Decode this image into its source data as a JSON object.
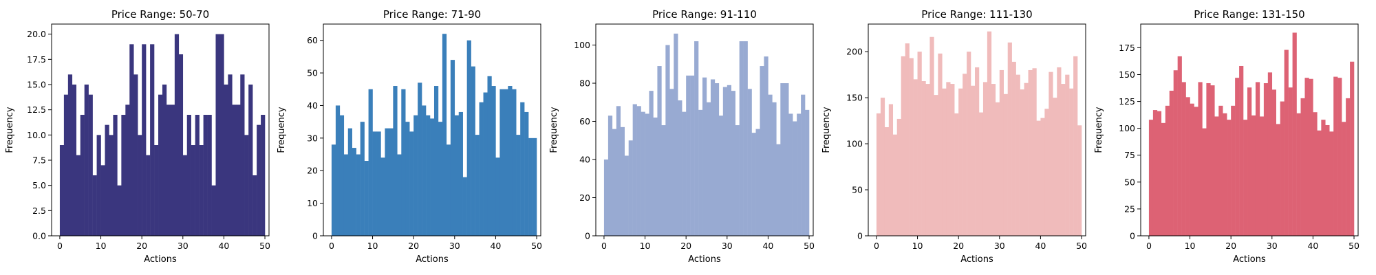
{
  "chart_data": [
    {
      "type": "bar",
      "title": "Price Range: 50-70",
      "xlabel": "Actions",
      "ylabel": "Frequency",
      "color": "#3a367e",
      "xlim": [
        -2,
        51
      ],
      "ylim": [
        0,
        21
      ],
      "xticks": [
        0,
        10,
        20,
        30,
        40,
        50
      ],
      "yticks": [
        0.0,
        2.5,
        5.0,
        7.5,
        10.0,
        12.5,
        15.0,
        17.5,
        20.0
      ],
      "ytick_labels": [
        "0.0",
        "2.5",
        "5.0",
        "7.5",
        "10.0",
        "12.5",
        "15.0",
        "17.5",
        "20.0"
      ],
      "x": [
        0,
        1,
        2,
        3,
        4,
        5,
        6,
        7,
        8,
        9,
        10,
        11,
        12,
        13,
        14,
        15,
        16,
        17,
        18,
        19,
        20,
        21,
        22,
        23,
        24,
        25,
        26,
        27,
        28,
        29,
        30,
        31,
        32,
        33,
        34,
        35,
        36,
        37,
        38,
        39,
        40,
        41,
        42,
        43,
        44,
        45,
        46,
        47,
        48,
        49
      ],
      "values": [
        9,
        14,
        16,
        15,
        8,
        12,
        15,
        14,
        6,
        10,
        7,
        11,
        10,
        12,
        5,
        12,
        13,
        19,
        16,
        10,
        19,
        8,
        19,
        9,
        14,
        15,
        13,
        13,
        20,
        18,
        8,
        12,
        9,
        12,
        9,
        12,
        12,
        5,
        20,
        20,
        15,
        16,
        13,
        13,
        16,
        10,
        15,
        6,
        11,
        12
      ]
    },
    {
      "type": "bar",
      "title": "Price Range: 71-90",
      "xlabel": "Actions",
      "ylabel": "Frequency",
      "color": "#3a7fba",
      "xlim": [
        -2,
        51
      ],
      "ylim": [
        0,
        65
      ],
      "xticks": [
        0,
        10,
        20,
        30,
        40,
        50
      ],
      "yticks": [
        0,
        10,
        20,
        30,
        40,
        50,
        60
      ],
      "ytick_labels": [
        "0",
        "10",
        "20",
        "30",
        "40",
        "50",
        "60"
      ],
      "x": [
        0,
        1,
        2,
        3,
        4,
        5,
        6,
        7,
        8,
        9,
        10,
        11,
        12,
        13,
        14,
        15,
        16,
        17,
        18,
        19,
        20,
        21,
        22,
        23,
        24,
        25,
        26,
        27,
        28,
        29,
        30,
        31,
        32,
        33,
        34,
        35,
        36,
        37,
        38,
        39,
        40,
        41,
        42,
        43,
        44,
        45,
        46,
        47,
        48,
        49
      ],
      "values": [
        28,
        40,
        37,
        25,
        33,
        27,
        25,
        35,
        23,
        45,
        32,
        32,
        24,
        33,
        33,
        46,
        25,
        45,
        35,
        32,
        37,
        47,
        40,
        37,
        36,
        46,
        35,
        62,
        28,
        54,
        37,
        38,
        18,
        60,
        52,
        31,
        41,
        44,
        49,
        46,
        24,
        45,
        45,
        46,
        45,
        31,
        41,
        38,
        30,
        30
      ]
    },
    {
      "type": "bar",
      "title": "Price Range: 91-110",
      "xlabel": "Actions",
      "ylabel": "Frequency",
      "color": "#98aad2",
      "xlim": [
        -2,
        51
      ],
      "ylim": [
        0,
        111
      ],
      "xticks": [
        0,
        10,
        20,
        30,
        40,
        50
      ],
      "yticks": [
        0,
        20,
        40,
        60,
        80,
        100
      ],
      "ytick_labels": [
        "0",
        "20",
        "40",
        "60",
        "80",
        "100"
      ],
      "x": [
        0,
        1,
        2,
        3,
        4,
        5,
        6,
        7,
        8,
        9,
        10,
        11,
        12,
        13,
        14,
        15,
        16,
        17,
        18,
        19,
        20,
        21,
        22,
        23,
        24,
        25,
        26,
        27,
        28,
        29,
        30,
        31,
        32,
        33,
        34,
        35,
        36,
        37,
        38,
        39,
        40,
        41,
        42,
        43,
        44,
        45,
        46,
        47,
        48,
        49
      ],
      "values": [
        40,
        63,
        56,
        68,
        57,
        42,
        50,
        69,
        68,
        65,
        64,
        76,
        62,
        89,
        58,
        100,
        77,
        106,
        71,
        65,
        84,
        84,
        102,
        66,
        83,
        70,
        82,
        80,
        63,
        78,
        79,
        76,
        58,
        102,
        102,
        77,
        54,
        56,
        89,
        94,
        74,
        70,
        48,
        80,
        80,
        64,
        60,
        64,
        74,
        66
      ]
    },
    {
      "type": "bar",
      "title": "Price Range: 111-130",
      "xlabel": "Actions",
      "ylabel": "Frequency",
      "color": "#f0bbbb",
      "xlim": [
        -2,
        51
      ],
      "ylim": [
        0,
        230
      ],
      "xticks": [
        0,
        10,
        20,
        30,
        40,
        50
      ],
      "yticks": [
        0,
        50,
        100,
        150,
        200
      ],
      "ytick_labels": [
        "0",
        "50",
        "100",
        "150",
        "200"
      ],
      "x": [
        0,
        1,
        2,
        3,
        4,
        5,
        6,
        7,
        8,
        9,
        10,
        11,
        12,
        13,
        14,
        15,
        16,
        17,
        18,
        19,
        20,
        21,
        22,
        23,
        24,
        25,
        26,
        27,
        28,
        29,
        30,
        31,
        32,
        33,
        34,
        35,
        36,
        37,
        38,
        39,
        40,
        41,
        42,
        43,
        44,
        45,
        46,
        47,
        48,
        49
      ],
      "values": [
        133,
        150,
        118,
        143,
        110,
        127,
        195,
        209,
        193,
        170,
        200,
        168,
        165,
        216,
        153,
        198,
        160,
        167,
        165,
        133,
        160,
        176,
        200,
        163,
        183,
        134,
        167,
        222,
        165,
        145,
        180,
        154,
        210,
        189,
        175,
        159,
        166,
        180,
        182,
        125,
        128,
        138,
        178,
        150,
        183,
        165,
        175,
        160,
        195,
        120
      ]
    },
    {
      "type": "bar",
      "title": "Price Range: 131-150",
      "xlabel": "Actions",
      "ylabel": "Frequency",
      "color": "#dd6274",
      "xlim": [
        -2,
        51
      ],
      "ylim": [
        0,
        197
      ],
      "xticks": [
        0,
        10,
        20,
        30,
        40,
        50
      ],
      "yticks": [
        0,
        25,
        50,
        75,
        100,
        125,
        150,
        175
      ],
      "ytick_labels": [
        "0",
        "25",
        "50",
        "75",
        "100",
        "125",
        "150",
        "175"
      ],
      "x": [
        0,
        1,
        2,
        3,
        4,
        5,
        6,
        7,
        8,
        9,
        10,
        11,
        12,
        13,
        14,
        15,
        16,
        17,
        18,
        19,
        20,
        21,
        22,
        23,
        24,
        25,
        26,
        27,
        28,
        29,
        30,
        31,
        32,
        33,
        34,
        35,
        36,
        37,
        38,
        39,
        40,
        41,
        42,
        43,
        44,
        45,
        46,
        47,
        48,
        49
      ],
      "values": [
        108,
        117,
        116,
        105,
        121,
        135,
        154,
        167,
        143,
        129,
        123,
        120,
        143,
        100,
        142,
        140,
        111,
        121,
        114,
        108,
        121,
        147,
        158,
        108,
        138,
        112,
        143,
        111,
        142,
        152,
        136,
        104,
        125,
        173,
        138,
        189,
        114,
        128,
        147,
        146,
        115,
        98,
        108,
        103,
        97,
        148,
        147,
        106,
        128,
        162
      ]
    }
  ]
}
